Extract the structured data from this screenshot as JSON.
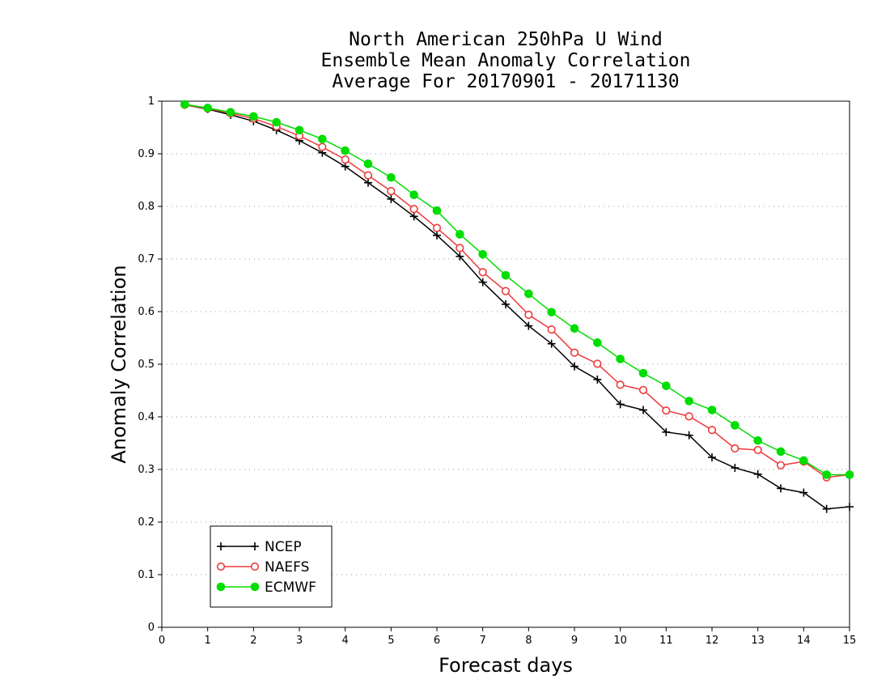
{
  "chart_data": {
    "type": "line",
    "title": [
      "North American 250hPa U Wind",
      "Ensemble Mean Anomaly Correlation",
      "Average For 20170901 - 20171130"
    ],
    "xlabel": "Forecast days",
    "ylabel": "Anomaly Correlation",
    "xlim": [
      0,
      15
    ],
    "ylim": [
      0,
      1
    ],
    "xticks": [
      "0",
      "1",
      "2",
      "3",
      "4",
      "5",
      "6",
      "7",
      "8",
      "9",
      "10",
      "11",
      "12",
      "13",
      "14",
      "15"
    ],
    "yticks": [
      "0",
      "0.1",
      "0.2",
      "0.3",
      "0.4",
      "0.5",
      "0.6",
      "0.7",
      "0.8",
      "0.9",
      "1"
    ],
    "grid": "horizontal dotted",
    "legend_position": "bottom-left",
    "x": [
      0.5,
      1,
      1.5,
      2,
      2.5,
      3,
      3.5,
      4,
      4.5,
      5,
      5.5,
      6,
      6.5,
      7,
      7.5,
      8,
      8.5,
      9,
      9.5,
      10,
      10.5,
      11,
      11.5,
      12,
      12.5,
      13,
      13.5,
      14,
      14.5,
      15
    ],
    "series": [
      {
        "name": "NCEP",
        "color": "#000000",
        "marker": "plus",
        "values": [
          0.993,
          0.985,
          0.974,
          0.962,
          0.945,
          0.925,
          0.902,
          0.876,
          0.845,
          0.814,
          0.781,
          0.745,
          0.705,
          0.656,
          0.614,
          0.573,
          0.539,
          0.496,
          0.471,
          0.424,
          0.413,
          0.371,
          0.365,
          0.323,
          0.303,
          0.291,
          0.264,
          0.256,
          0.225,
          0.229
        ]
      },
      {
        "name": "NAEFS",
        "color": "#ee3a3a",
        "marker": "open-circle",
        "values": [
          0.993,
          0.986,
          0.977,
          0.967,
          0.952,
          0.934,
          0.913,
          0.889,
          0.859,
          0.829,
          0.795,
          0.759,
          0.721,
          0.675,
          0.639,
          0.594,
          0.566,
          0.522,
          0.501,
          0.461,
          0.451,
          0.412,
          0.401,
          0.375,
          0.34,
          0.337,
          0.308,
          0.315,
          0.285,
          0.29
        ]
      },
      {
        "name": "ECMWF",
        "color": "#00dd00",
        "marker": "filled-circle",
        "values": [
          0.994,
          0.987,
          0.979,
          0.971,
          0.96,
          0.945,
          0.928,
          0.906,
          0.881,
          0.855,
          0.822,
          0.792,
          0.747,
          0.709,
          0.669,
          0.634,
          0.599,
          0.568,
          0.541,
          0.51,
          0.483,
          0.459,
          0.43,
          0.413,
          0.384,
          0.355,
          0.334,
          0.317,
          0.29,
          0.29
        ]
      }
    ]
  }
}
